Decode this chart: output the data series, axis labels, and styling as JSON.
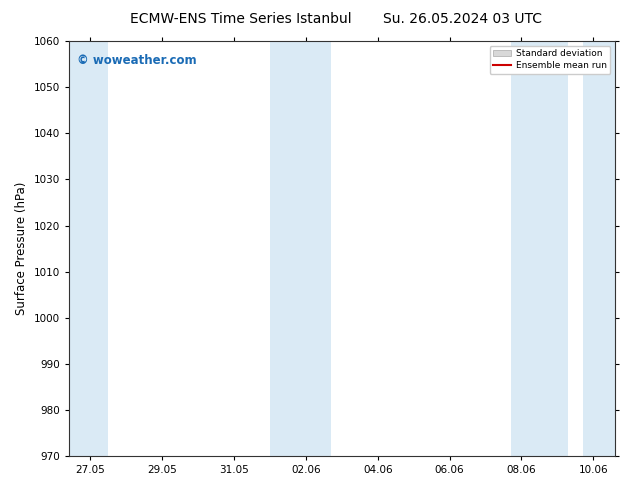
{
  "title_left": "ECMW-ENS Time Series Istanbul",
  "title_right": "Su. 26.05.2024 03 UTC",
  "ylabel": "Surface Pressure (hPa)",
  "ylim": [
    970,
    1060
  ],
  "yticks": [
    970,
    980,
    990,
    1000,
    1010,
    1020,
    1030,
    1040,
    1050,
    1060
  ],
  "xtick_labels": [
    "27.05",
    "29.05",
    "31.05",
    "02.06",
    "04.06",
    "06.06",
    "08.06",
    "10.06"
  ],
  "shade_color": "#daeaf5",
  "background_color": "#ffffff",
  "watermark_text": "© woweather.com",
  "watermark_color": "#1a6bb5",
  "legend_items": [
    "Standard deviation",
    "Ensemble mean run"
  ],
  "legend_std_color": "#d8d8d8",
  "legend_mean_color": "#cc0000",
  "title_fontsize": 10,
  "tick_fontsize": 7.5,
  "ylabel_fontsize": 8.5,
  "watermark_fontsize": 8.5
}
